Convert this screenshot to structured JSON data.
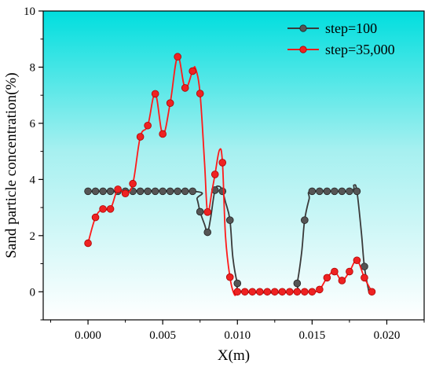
{
  "chart_data": {
    "type": "line",
    "xlabel": "X(m)",
    "ylabel": "Sand particle concentration(%)",
    "xlim": [
      -0.003,
      0.0225
    ],
    "ylim": [
      -1,
      10
    ],
    "x_ticks": [
      "0.000",
      "0.005",
      "0.010",
      "0.015",
      "0.020"
    ],
    "x_tick_values": [
      0.0,
      0.005,
      0.01,
      0.015,
      0.02
    ],
    "y_ticks": [
      "0",
      "2",
      "4",
      "6",
      "8",
      "10"
    ],
    "y_tick_values": [
      0,
      2,
      4,
      6,
      8,
      10
    ],
    "background": "cyan-to-white vertical gradient",
    "grid": false,
    "legend_position": "top-right",
    "series": [
      {
        "name": "step=100",
        "color": "#3a3a3a",
        "marker_color": "#555555",
        "x": [
          0.0,
          0.0005,
          0.001,
          0.0015,
          0.002,
          0.0025,
          0.003,
          0.0035,
          0.004,
          0.0045,
          0.005,
          0.0055,
          0.006,
          0.0065,
          0.007,
          0.0075,
          0.008,
          0.0085,
          0.009,
          0.0095,
          0.01,
          0.014,
          0.0145,
          0.015,
          0.0155,
          0.016,
          0.0165,
          0.017,
          0.0175,
          0.018,
          0.0185
        ],
        "y": [
          3.58,
          3.58,
          3.58,
          3.58,
          3.58,
          3.58,
          3.58,
          3.58,
          3.58,
          3.58,
          3.58,
          3.58,
          3.58,
          3.58,
          3.58,
          2.85,
          2.12,
          3.62,
          3.58,
          2.55,
          0.3,
          0.3,
          2.55,
          3.58,
          3.58,
          3.58,
          3.58,
          3.58,
          3.58,
          3.58,
          0.9
        ],
        "curve_x": [
          0.0,
          0.007,
          0.0073,
          0.0075,
          0.0078,
          0.008,
          0.0082,
          0.0085,
          0.0088,
          0.009,
          0.0092,
          0.0095,
          0.0097,
          0.01,
          0.0103,
          0.0138,
          0.014,
          0.0143,
          0.0145,
          0.0148,
          0.015,
          0.0175,
          0.0178,
          0.018,
          0.0183,
          0.0185,
          0.0188
        ],
        "curve_y": [
          3.58,
          3.58,
          3.3,
          2.85,
          2.4,
          2.12,
          2.6,
          3.62,
          3.75,
          3.58,
          3.2,
          2.55,
          1.2,
          0.3,
          0.0,
          0.0,
          0.3,
          1.4,
          2.55,
          3.3,
          3.58,
          3.58,
          3.8,
          3.58,
          2.1,
          0.9,
          0.0
        ]
      },
      {
        "name": "step=35,000",
        "color": "#ff1a1a",
        "marker_color": "#ee2222",
        "x": [
          0.0,
          0.0005,
          0.001,
          0.0015,
          0.002,
          0.0025,
          0.003,
          0.0035,
          0.004,
          0.0045,
          0.005,
          0.0055,
          0.006,
          0.0065,
          0.007,
          0.0075,
          0.008,
          0.0085,
          0.009,
          0.0095,
          0.01,
          0.0105,
          0.011,
          0.0115,
          0.012,
          0.0125,
          0.013,
          0.0135,
          0.014,
          0.0145,
          0.015,
          0.0155,
          0.016,
          0.0165,
          0.017,
          0.0175,
          0.018,
          0.0185,
          0.019
        ],
        "y": [
          1.73,
          2.65,
          2.95,
          2.95,
          3.65,
          3.5,
          3.85,
          5.52,
          5.92,
          7.05,
          5.62,
          6.72,
          8.37,
          7.26,
          7.86,
          7.06,
          2.84,
          4.18,
          4.6,
          0.52,
          0.0,
          0.0,
          0.0,
          0.0,
          0.0,
          0.0,
          0.0,
          0.0,
          0.0,
          0.0,
          0.0,
          0.08,
          0.5,
          0.72,
          0.4,
          0.72,
          1.12,
          0.5,
          0.0
        ],
        "curve_x": [
          0.0,
          0.0005,
          0.001,
          0.0015,
          0.002,
          0.0025,
          0.003,
          0.0035,
          0.004,
          0.0045,
          0.005,
          0.0055,
          0.006,
          0.0065,
          0.007,
          0.0072,
          0.0075,
          0.0078,
          0.008,
          0.0083,
          0.0085,
          0.0088,
          0.009,
          0.0092,
          0.0095,
          0.0098,
          0.01,
          0.0105,
          0.015,
          0.0155,
          0.016,
          0.0165,
          0.017,
          0.0175,
          0.018,
          0.0185,
          0.019
        ],
        "curve_y": [
          1.73,
          2.65,
          2.95,
          2.95,
          3.65,
          3.5,
          3.85,
          5.52,
          5.92,
          7.05,
          5.62,
          6.72,
          8.37,
          7.26,
          7.86,
          7.95,
          7.06,
          4.6,
          2.84,
          3.6,
          4.18,
          5.05,
          4.6,
          2.0,
          0.52,
          -0.1,
          0.0,
          0.0,
          0.0,
          0.08,
          0.5,
          0.72,
          0.4,
          0.72,
          1.12,
          0.5,
          0.0
        ]
      }
    ]
  }
}
